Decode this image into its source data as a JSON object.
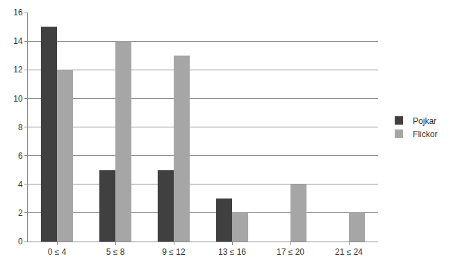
{
  "chart_data": {
    "type": "bar",
    "categories": [
      "0 ≤ 4",
      "5 ≤ 8",
      "9 ≤ 12",
      "13 ≤ 16",
      "17 ≤ 20",
      "21 ≤ 24"
    ],
    "series": [
      {
        "name": "Pojkar",
        "color": "#404040",
        "values": [
          15,
          5,
          5,
          3,
          0,
          0
        ]
      },
      {
        "name": "Flickor",
        "color": "#a6a6a6",
        "values": [
          12,
          14,
          13,
          2,
          4,
          2
        ]
      }
    ],
    "ylim": [
      0,
      16
    ],
    "yticks": [
      0,
      2,
      4,
      6,
      8,
      10,
      12,
      14,
      16
    ],
    "grid": true,
    "legend": "right"
  }
}
